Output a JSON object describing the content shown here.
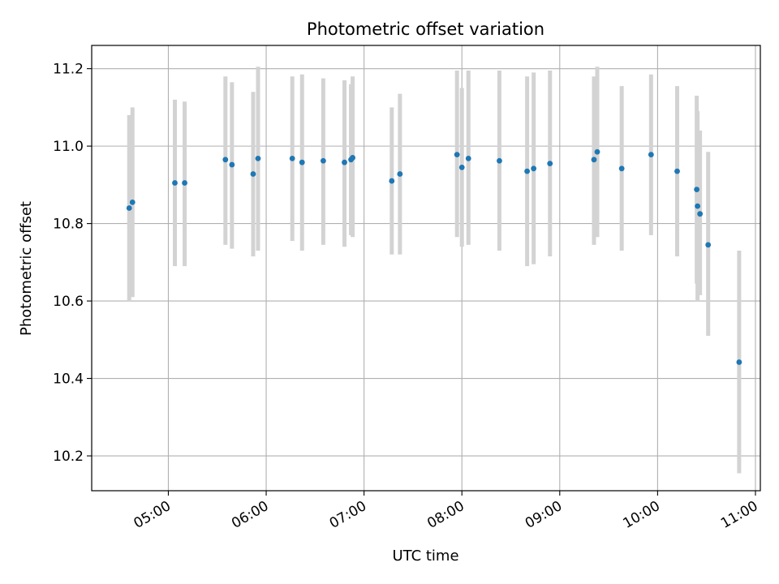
{
  "chart_data": {
    "type": "scatter",
    "title": "Photometric offset variation",
    "xlabel": "UTC time",
    "ylabel": "Photometric offset",
    "x_ticks": [
      "05:00",
      "06:00",
      "07:00",
      "08:00",
      "09:00",
      "10:00",
      "11:00"
    ],
    "x_tick_minutes": [
      300,
      360,
      420,
      480,
      540,
      600,
      660
    ],
    "y_ticks": [
      10.2,
      10.4,
      10.6,
      10.8,
      11.0,
      11.2
    ],
    "xlim_minutes": [
      253,
      663
    ],
    "ylim": [
      10.11,
      11.26
    ],
    "grid": true,
    "colors": {
      "point": "#1f77b4",
      "errorbar": "#d3d3d3",
      "grid": "#b0b0b0"
    },
    "points": [
      {
        "t": "04:36",
        "m": 276,
        "y": 10.84,
        "lo": 10.6,
        "hi": 11.08
      },
      {
        "t": "04:38",
        "m": 278,
        "y": 10.855,
        "lo": 10.61,
        "hi": 11.1
      },
      {
        "t": "05:04",
        "m": 304,
        "y": 10.905,
        "lo": 10.69,
        "hi": 11.12
      },
      {
        "t": "05:10",
        "m": 310,
        "y": 10.905,
        "lo": 10.69,
        "hi": 11.115
      },
      {
        "t": "05:35",
        "m": 335,
        "y": 10.965,
        "lo": 10.745,
        "hi": 11.18
      },
      {
        "t": "05:39",
        "m": 339,
        "y": 10.952,
        "lo": 10.735,
        "hi": 11.165
      },
      {
        "t": "05:52",
        "m": 352,
        "y": 10.928,
        "lo": 10.715,
        "hi": 11.14
      },
      {
        "t": "05:55",
        "m": 355,
        "y": 10.968,
        "lo": 10.73,
        "hi": 11.205
      },
      {
        "t": "06:16",
        "m": 376,
        "y": 10.968,
        "lo": 10.755,
        "hi": 11.18
      },
      {
        "t": "06:22",
        "m": 382,
        "y": 10.958,
        "lo": 10.73,
        "hi": 11.185
      },
      {
        "t": "06:35",
        "m": 395,
        "y": 10.962,
        "lo": 10.745,
        "hi": 11.175
      },
      {
        "t": "06:48",
        "m": 408,
        "y": 10.958,
        "lo": 10.74,
        "hi": 11.17
      },
      {
        "t": "06:52",
        "m": 412,
        "y": 10.965,
        "lo": 10.77,
        "hi": 11.16
      },
      {
        "t": "06:53",
        "m": 413,
        "y": 10.97,
        "lo": 10.765,
        "hi": 11.18
      },
      {
        "t": "07:17",
        "m": 437,
        "y": 10.91,
        "lo": 10.72,
        "hi": 11.1
      },
      {
        "t": "07:22",
        "m": 442,
        "y": 10.928,
        "lo": 10.72,
        "hi": 11.135
      },
      {
        "t": "07:57",
        "m": 477,
        "y": 10.978,
        "lo": 10.765,
        "hi": 11.195
      },
      {
        "t": "08:00",
        "m": 480,
        "y": 10.945,
        "lo": 10.74,
        "hi": 11.15
      },
      {
        "t": "08:04",
        "m": 484,
        "y": 10.968,
        "lo": 10.745,
        "hi": 11.195
      },
      {
        "t": "08:23",
        "m": 503,
        "y": 10.962,
        "lo": 10.73,
        "hi": 11.195
      },
      {
        "t": "08:40",
        "m": 520,
        "y": 10.935,
        "lo": 10.69,
        "hi": 11.18
      },
      {
        "t": "08:44",
        "m": 524,
        "y": 10.942,
        "lo": 10.695,
        "hi": 11.19
      },
      {
        "t": "08:54",
        "m": 534,
        "y": 10.955,
        "lo": 10.715,
        "hi": 11.195
      },
      {
        "t": "09:21",
        "m": 561,
        "y": 10.965,
        "lo": 10.745,
        "hi": 11.18
      },
      {
        "t": "09:23",
        "m": 563,
        "y": 10.985,
        "lo": 10.765,
        "hi": 11.205
      },
      {
        "t": "09:38",
        "m": 578,
        "y": 10.942,
        "lo": 10.73,
        "hi": 11.155
      },
      {
        "t": "09:56",
        "m": 596,
        "y": 10.978,
        "lo": 10.77,
        "hi": 11.185
      },
      {
        "t": "10:12",
        "m": 612,
        "y": 10.935,
        "lo": 10.715,
        "hi": 11.155
      },
      {
        "t": "10:24",
        "m": 624,
        "y": 10.888,
        "lo": 10.645,
        "hi": 11.13
      },
      {
        "t": "10:24",
        "m": 624.5,
        "y": 10.845,
        "lo": 10.6,
        "hi": 11.09
      },
      {
        "t": "10:26",
        "m": 626,
        "y": 10.825,
        "lo": 10.615,
        "hi": 11.04
      },
      {
        "t": "10:31",
        "m": 631,
        "y": 10.745,
        "lo": 10.51,
        "hi": 10.985
      },
      {
        "t": "10:50",
        "m": 650,
        "y": 10.442,
        "lo": 10.155,
        "hi": 10.73
      }
    ]
  }
}
